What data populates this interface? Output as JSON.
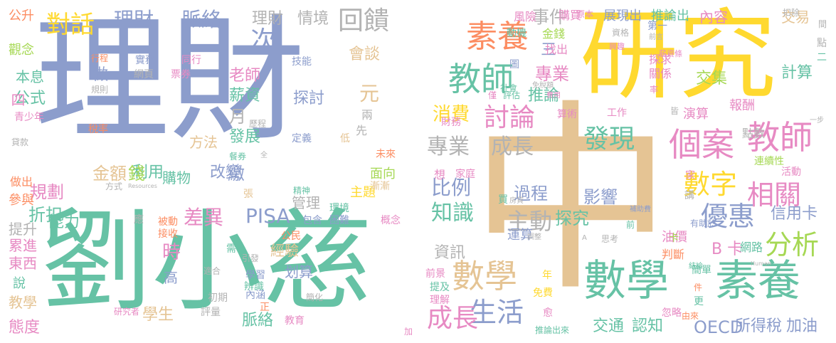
{
  "colors": {
    "blue": "#8c9dcc",
    "green": "#66c2a5",
    "orange": "#fc8d62",
    "pink": "#e78ac3",
    "lime": "#a6d854",
    "yellow": "#ffd92f",
    "tan": "#e5c494",
    "gray": "#b3b3b3"
  },
  "words": [
    {
      "text": "理財",
      "color": "blue"
    },
    {
      "text": "劉小慈",
      "color": "green"
    },
    {
      "text": "研究",
      "color": "yellow"
    },
    {
      "text": "中",
      "color": "tan"
    },
    {
      "text": "數學",
      "color": "green"
    },
    {
      "text": "素養",
      "color": "green"
    },
    {
      "text": "素養",
      "color": "orange"
    },
    {
      "text": "教師",
      "color": "green"
    },
    {
      "text": "教師",
      "color": "pink"
    },
    {
      "text": "個案",
      "color": "pink"
    },
    {
      "text": "數學",
      "color": "tan"
    },
    {
      "text": "數字",
      "color": "yellow"
    },
    {
      "text": "回饋",
      "color": "gray"
    },
    {
      "text": "對話",
      "color": "yellow"
    },
    {
      "text": "理財",
      "color": "blue"
    },
    {
      "text": "脈絡",
      "color": "blue"
    },
    {
      "text": "理財",
      "color": "gray"
    },
    {
      "text": "情境",
      "color": "gray"
    },
    {
      "text": "次",
      "color": "blue"
    },
    {
      "text": "討論",
      "color": "pink"
    },
    {
      "text": "發現",
      "color": "green"
    },
    {
      "text": "專業",
      "color": "pink"
    },
    {
      "text": "專業",
      "color": "gray"
    },
    {
      "text": "成長",
      "color": "gray"
    },
    {
      "text": "事件",
      "color": "gray"
    },
    {
      "text": "消費",
      "color": "yellow"
    },
    {
      "text": "推論",
      "color": "green"
    },
    {
      "text": "相關",
      "color": "pink"
    },
    {
      "text": "優惠",
      "color": "blue"
    },
    {
      "text": "分析",
      "color": "lime"
    },
    {
      "text": "生活",
      "color": "blue"
    },
    {
      "text": "成長",
      "color": "pink"
    },
    {
      "text": "PISA",
      "color": "blue"
    },
    {
      "text": "差異",
      "color": "pink"
    },
    {
      "text": "知識",
      "color": "green"
    },
    {
      "text": "比例",
      "color": "blue"
    },
    {
      "text": "主動",
      "color": "gray"
    },
    {
      "text": "過程",
      "color": "blue"
    },
    {
      "text": "影響",
      "color": "blue"
    },
    {
      "text": "探究",
      "color": "green"
    },
    {
      "text": "金額",
      "color": "tan"
    },
    {
      "text": "利用",
      "color": "green"
    },
    {
      "text": "規劃",
      "color": "pink"
    },
    {
      "text": "折扣",
      "color": "green"
    },
    {
      "text": "能力",
      "color": "green"
    },
    {
      "text": "公式",
      "color": "green"
    },
    {
      "text": "本息",
      "color": "green"
    },
    {
      "text": "觀念",
      "color": "lime"
    },
    {
      "text": "公升",
      "color": "orange"
    },
    {
      "text": "薪資",
      "color": "green"
    },
    {
      "text": "老師",
      "color": "pink"
    },
    {
      "text": "會談",
      "color": "tan"
    },
    {
      "text": "元",
      "color": "tan"
    },
    {
      "text": "月",
      "color": "gray"
    },
    {
      "text": "發展",
      "color": "green"
    },
    {
      "text": "改變",
      "color": "blue"
    },
    {
      "text": "購物",
      "color": "green"
    },
    {
      "text": "方法",
      "color": "tan"
    },
    {
      "text": "錢",
      "color": "lime"
    },
    {
      "text": "時",
      "color": "pink"
    },
    {
      "text": "高",
      "color": "blue"
    },
    {
      "text": "學生",
      "color": "tan"
    },
    {
      "text": "脈絡",
      "color": "green"
    },
    {
      "text": "經驗",
      "color": "tan"
    },
    {
      "text": "划算",
      "color": "blue"
    },
    {
      "text": "資訊",
      "color": "gray"
    },
    {
      "text": "管理",
      "color": "gray"
    },
    {
      "text": "交通",
      "color": "green"
    },
    {
      "text": "認知",
      "color": "green"
    },
    {
      "text": "OECD",
      "color": "blue"
    },
    {
      "text": "所得稅",
      "color": "blue"
    },
    {
      "text": "加油",
      "color": "blue"
    },
    {
      "text": "信用卡",
      "color": "blue"
    },
    {
      "text": "B 卡",
      "color": "pink"
    },
    {
      "text": "計算",
      "color": "green"
    },
    {
      "text": "交集",
      "color": "lime"
    },
    {
      "text": "內容",
      "color": "pink"
    },
    {
      "text": "交易",
      "color": "tan"
    },
    {
      "text": "推論出",
      "color": "green"
    },
    {
      "text": "展現出",
      "color": "blue"
    },
    {
      "text": "購買",
      "color": "pink"
    },
    {
      "text": "態度",
      "color": "pink"
    },
    {
      "text": "教學",
      "color": "tan"
    },
    {
      "text": "說",
      "color": "green"
    },
    {
      "text": "東西",
      "color": "pink"
    },
    {
      "text": "累進",
      "color": "pink"
    },
    {
      "text": "提升",
      "color": "gray"
    },
    {
      "text": "參與",
      "color": "orange"
    },
    {
      "text": "做出",
      "color": "orange"
    },
    {
      "text": "四",
      "color": "pink"
    },
    {
      "text": "做",
      "color": "blue"
    },
    {
      "text": "三",
      "color": "blue"
    },
    {
      "text": "探討",
      "color": "blue"
    },
    {
      "text": "繳",
      "color": "blue"
    },
    {
      "text": "面向",
      "color": "lime"
    },
    {
      "text": "主題",
      "color": "yellow"
    },
    {
      "text": "網路",
      "color": "green"
    },
    {
      "text": "油價",
      "color": "pink"
    },
    {
      "text": "報酬",
      "color": "pink"
    },
    {
      "text": "演算",
      "color": "pink"
    },
    {
      "text": "點數",
      "color": "gray"
    },
    {
      "text": "簡單",
      "color": "green"
    },
    {
      "text": "判斷",
      "color": "orange"
    },
    {
      "text": "金錢",
      "color": "lime"
    },
    {
      "text": "找出",
      "color": "pink"
    },
    {
      "text": "關係",
      "color": "pink"
    },
    {
      "text": "探求",
      "color": "pink"
    },
    {
      "text": "風險",
      "color": "pink"
    },
    {
      "text": "動機",
      "color": "green"
    },
    {
      "text": "運算",
      "color": "blue"
    },
    {
      "text": "家庭",
      "color": "pink"
    },
    {
      "text": "想",
      "color": "pink"
    },
    {
      "text": "兩",
      "color": "gray"
    },
    {
      "text": "先",
      "color": "gray"
    },
    {
      "text": "技能",
      "color": "blue"
    },
    {
      "text": "實務",
      "color": "blue"
    },
    {
      "text": "同行",
      "color": "pink"
    },
    {
      "text": "網頁",
      "color": "gray"
    },
    {
      "text": "票券",
      "color": "pink"
    },
    {
      "text": "定義",
      "color": "blue"
    },
    {
      "text": "稅率",
      "color": "orange"
    },
    {
      "text": "青少年",
      "color": "pink"
    },
    {
      "text": "行程",
      "color": "orange"
    },
    {
      "text": "規則",
      "color": "gray"
    },
    {
      "text": "歷程",
      "color": "gray"
    },
    {
      "text": "餐券",
      "color": "green"
    },
    {
      "text": "貸款",
      "color": "gray"
    },
    {
      "text": "方式",
      "color": "gray"
    },
    {
      "text": "Resources",
      "color": "gray"
    },
    {
      "text": "精神",
      "color": "green"
    },
    {
      "text": "被動",
      "color": "orange"
    },
    {
      "text": "接收",
      "color": "orange"
    },
    {
      "text": "應",
      "color": "gray"
    },
    {
      "text": "公民",
      "color": "orange"
    },
    {
      "text": "需",
      "color": "green"
    },
    {
      "text": "引發",
      "color": "gray"
    },
    {
      "text": "學習",
      "color": "blue"
    },
    {
      "text": "辨識",
      "color": "green"
    },
    {
      "text": "初期",
      "color": "gray"
    },
    {
      "text": "評量",
      "color": "gray"
    },
    {
      "text": "研究者",
      "color": "pink"
    },
    {
      "text": "內涵",
      "color": "blue"
    },
    {
      "text": "正",
      "color": "orange"
    },
    {
      "text": "教育",
      "color": "pink"
    },
    {
      "text": "簡化",
      "color": "gray"
    },
    {
      "text": "包含",
      "color": "blue"
    },
    {
      "text": "困難",
      "color": "blue"
    },
    {
      "text": "概念",
      "color": "pink"
    },
    {
      "text": "環境",
      "color": "green"
    },
    {
      "text": "未來",
      "color": "orange"
    },
    {
      "text": "漸漸",
      "color": "tan"
    },
    {
      "text": "前景",
      "color": "pink"
    },
    {
      "text": "提及",
      "color": "green"
    },
    {
      "text": "理解",
      "color": "pink"
    },
    {
      "text": "免費",
      "color": "yellow"
    },
    {
      "text": "年",
      "color": "yellow"
    },
    {
      "text": "買",
      "color": "green"
    },
    {
      "text": "房貸",
      "color": "gray"
    },
    {
      "text": "調整",
      "color": "gray"
    },
    {
      "text": "前",
      "color": "green"
    },
    {
      "text": "補助費",
      "color": "blue"
    },
    {
      "text": "思考",
      "color": "gray"
    },
    {
      "text": "有助於",
      "color": "blue"
    },
    {
      "text": "結論",
      "color": "green"
    },
    {
      "text": "Human",
      "color": "gray"
    },
    {
      "text": "忽略",
      "color": "pink"
    },
    {
      "text": "由來",
      "color": "orange"
    },
    {
      "text": "件",
      "color": "orange"
    },
    {
      "text": "更",
      "color": "green"
    },
    {
      "text": "愈",
      "color": "pink"
    },
    {
      "text": "推論出來",
      "color": "green"
    },
    {
      "text": "加",
      "color": "pink"
    },
    {
      "text": "卡",
      "color": "lime"
    },
    {
      "text": "算術",
      "color": "pink"
    },
    {
      "text": "工作",
      "color": "pink"
    },
    {
      "text": "連續性",
      "color": "lime"
    },
    {
      "text": "活動",
      "color": "pink"
    },
    {
      "text": "家",
      "color": "pink"
    },
    {
      "text": "講",
      "color": "gray"
    },
    {
      "text": "一步",
      "color": "gray"
    },
    {
      "text": "扣除",
      "color": "gray"
    },
    {
      "text": "間",
      "color": "gray"
    },
    {
      "text": "點",
      "color": "gray"
    },
    {
      "text": "二",
      "color": "green"
    },
    {
      "text": "率",
      "color": "pink"
    },
    {
      "text": "皆",
      "color": "gray"
    },
    {
      "text": "資格",
      "color": "gray"
    },
    {
      "text": "前言",
      "color": "gray"
    },
    {
      "text": "原本",
      "color": "pink"
    },
    {
      "text": "第一",
      "color": "blue"
    },
    {
      "text": "薪資條",
      "color": "pink"
    },
    {
      "text": "興趣",
      "color": "pink"
    },
    {
      "text": "社會",
      "color": "green"
    },
    {
      "text": "評估",
      "color": "green"
    },
    {
      "text": "僅",
      "color": "pink"
    },
    {
      "text": "免稅額",
      "color": "gray"
    },
    {
      "text": "費用",
      "color": "pink"
    },
    {
      "text": "財務",
      "color": "pink"
    },
    {
      "text": "低",
      "color": "tan"
    },
    {
      "text": "全",
      "color": "gray"
    },
    {
      "text": "張",
      "color": "tan"
    },
    {
      "text": "適合",
      "color": "gray"
    },
    {
      "text": "A",
      "color": "gray"
    },
    {
      "text": "圖",
      "color": "blue"
    }
  ]
}
